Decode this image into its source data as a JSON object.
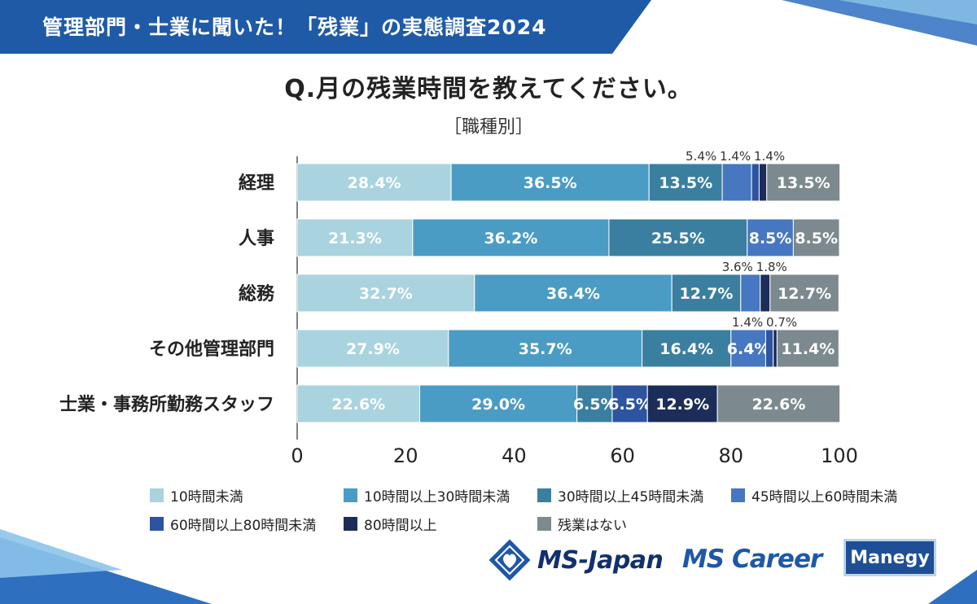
{
  "header": {
    "banner_title": "管理部門・士業に聞いた！「残業」の実態調査2024"
  },
  "question": "Q.月の残業時間を教えてください。",
  "subtitle": "［職種別］",
  "logos": {
    "ms_japan": "MS-Japan",
    "ms_career": "MS Career",
    "manegy": "Manegy"
  },
  "colors": {
    "brand_blue": "#1f5aa6"
  },
  "chart_data": {
    "type": "bar",
    "orientation": "horizontal",
    "stacked": true,
    "title": "Q.月の残業時間を教えてください。",
    "subtitle": "［職種別］",
    "categories": [
      "経理",
      "人事",
      "総務",
      "その他管理部門",
      "士業・事務所勤務スタッフ"
    ],
    "xlim": [
      0,
      100
    ],
    "xticks": [
      "0",
      "20",
      "40",
      "60",
      "80",
      "100"
    ],
    "legend_position": "bottom",
    "series": [
      {
        "name": "10時間未満",
        "color": "#a9d3df",
        "values": [
          28.4,
          21.3,
          32.7,
          27.9,
          22.6
        ],
        "labels": [
          "28.4%",
          "21.3%",
          "32.7%",
          "27.9%",
          "22.6%"
        ]
      },
      {
        "name": "10時間以上30時間未満",
        "color": "#4a9cc4",
        "values": [
          36.5,
          36.2,
          36.4,
          35.7,
          29.0
        ],
        "labels": [
          "36.5%",
          "36.2%",
          "36.4%",
          "35.7%",
          "29.0%"
        ]
      },
      {
        "name": "30時間以上45時間未満",
        "color": "#3a7fa0",
        "values": [
          13.5,
          25.5,
          12.7,
          16.4,
          6.5
        ],
        "labels": [
          "13.5%",
          "25.5%",
          "12.7%",
          "16.4%",
          "6.5%"
        ]
      },
      {
        "name": "45時間以上60時間未満",
        "color": "#4677c0",
        "values": [
          5.4,
          8.5,
          3.6,
          6.4,
          0
        ],
        "labels": [
          "5.4%",
          "8.5%",
          "3.6%",
          "6.4%",
          ""
        ]
      },
      {
        "name": "60時間以上80時間未満",
        "color": "#2d54a0",
        "values": [
          1.4,
          0,
          0,
          1.4,
          6.5
        ],
        "labels": [
          "1.4%",
          "",
          "",
          "1.4%",
          "6.5%"
        ]
      },
      {
        "name": "80時間以上",
        "color": "#1b2d58",
        "values": [
          1.4,
          0,
          1.8,
          0.7,
          12.9
        ],
        "labels": [
          "1.4%",
          "",
          "1.8%",
          "0.7%",
          "12.9%"
        ]
      },
      {
        "name": "残業はない",
        "color": "#7c8a8f",
        "values": [
          13.5,
          8.5,
          12.7,
          11.4,
          22.6
        ],
        "labels": [
          "13.5%",
          "8.5%",
          "12.7%",
          "11.4%",
          "22.6%"
        ]
      }
    ],
    "outside_labels": [
      {
        "category": "経理",
        "series": "45時間以上60時間未満"
      },
      {
        "category": "経理",
        "series": "60時間以上80時間未満"
      },
      {
        "category": "経理",
        "series": "80時間以上"
      },
      {
        "category": "総務",
        "series": "45時間以上60時間未満"
      },
      {
        "category": "総務",
        "series": "80時間以上"
      },
      {
        "category": "その他管理部門",
        "series": "60時間以上80時間未満"
      },
      {
        "category": "その他管理部門",
        "series": "80時間以上"
      }
    ]
  }
}
